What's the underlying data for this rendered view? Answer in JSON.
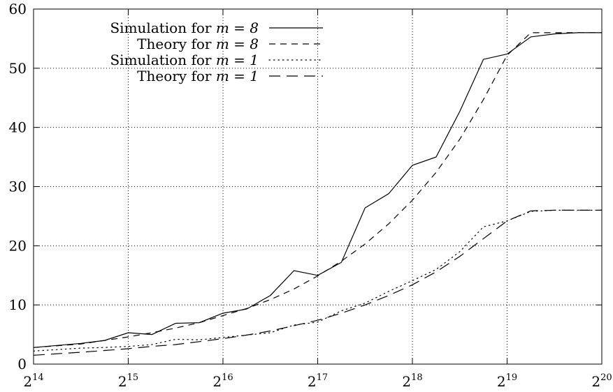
{
  "chart_data": {
    "type": "line",
    "title": "",
    "xlabel": "",
    "ylabel": "",
    "x_scale": "log2",
    "x_exponent_range": [
      14,
      20
    ],
    "ylim": [
      0,
      60
    ],
    "grid": true,
    "legend_position": "top-left",
    "x_ticks": [
      {
        "base": "2",
        "exp": "14"
      },
      {
        "base": "2",
        "exp": "15"
      },
      {
        "base": "2",
        "exp": "16"
      },
      {
        "base": "2",
        "exp": "17"
      },
      {
        "base": "2",
        "exp": "18"
      },
      {
        "base": "2",
        "exp": "19"
      },
      {
        "base": "2",
        "exp": "20"
      }
    ],
    "y_ticks": [
      "0",
      "10",
      "20",
      "30",
      "40",
      "50",
      "60"
    ],
    "series": [
      {
        "label_text": "Simulation for ",
        "label_math": "m = 8",
        "style": "solid",
        "points": [
          [
            14,
            2.8
          ],
          [
            14.5,
            3.5
          ],
          [
            14.75,
            4.0
          ],
          [
            15,
            5.3
          ],
          [
            15.25,
            5.0
          ],
          [
            15.5,
            6.9
          ],
          [
            15.75,
            7.0
          ],
          [
            16,
            8.6
          ],
          [
            16.25,
            9.3
          ],
          [
            16.5,
            11.6
          ],
          [
            16.75,
            15.8
          ],
          [
            17,
            15.0
          ],
          [
            17.25,
            17.2
          ],
          [
            17.5,
            26.4
          ],
          [
            17.75,
            28.8
          ],
          [
            18,
            33.6
          ],
          [
            18.25,
            35.0
          ],
          [
            18.5,
            42.7
          ],
          [
            18.75,
            51.5
          ],
          [
            19,
            52.4
          ],
          [
            19.25,
            55.3
          ],
          [
            19.5,
            55.8
          ],
          [
            19.75,
            56.0
          ],
          [
            20,
            56.0
          ]
        ]
      },
      {
        "label_text": "Theory for ",
        "label_math": "m = 8",
        "style": "dashed",
        "points": [
          [
            14,
            2.8
          ],
          [
            14.5,
            3.4
          ],
          [
            14.75,
            4.0
          ],
          [
            15,
            4.6
          ],
          [
            15.25,
            5.3
          ],
          [
            15.5,
            6.1
          ],
          [
            15.75,
            7.0
          ],
          [
            16,
            8.2
          ],
          [
            16.25,
            9.4
          ],
          [
            16.5,
            10.9
          ],
          [
            16.75,
            12.7
          ],
          [
            17,
            14.9
          ],
          [
            17.25,
            17.4
          ],
          [
            17.5,
            20.3
          ],
          [
            17.75,
            23.7
          ],
          [
            18,
            27.7
          ],
          [
            18.25,
            32.4
          ],
          [
            18.5,
            38.0
          ],
          [
            18.75,
            44.7
          ],
          [
            19,
            52.2
          ],
          [
            19.25,
            56.0
          ],
          [
            19.5,
            56.0
          ],
          [
            19.75,
            56.0
          ],
          [
            20,
            56.0
          ]
        ]
      },
      {
        "label_text": "Simulation for ",
        "label_math": "m = 1",
        "style": "dotted",
        "points": [
          [
            14,
            2.2
          ],
          [
            14.5,
            2.7
          ],
          [
            14.75,
            2.8
          ],
          [
            15,
            3.0
          ],
          [
            15.25,
            3.3
          ],
          [
            15.5,
            4.2
          ],
          [
            15.75,
            4.1
          ],
          [
            16,
            4.5
          ],
          [
            16.25,
            4.9
          ],
          [
            16.5,
            5.3
          ],
          [
            16.75,
            6.6
          ],
          [
            17,
            7.1
          ],
          [
            17.25,
            9.0
          ],
          [
            17.5,
            10.3
          ],
          [
            17.75,
            12.3
          ],
          [
            18,
            14.1
          ],
          [
            18.25,
            16.0
          ],
          [
            18.5,
            19.0
          ],
          [
            18.75,
            23.2
          ],
          [
            19,
            24.2
          ],
          [
            19.25,
            25.8
          ],
          [
            19.5,
            26.0
          ],
          [
            19.75,
            26.0
          ],
          [
            20,
            26.0
          ]
        ]
      },
      {
        "label_text": "Theory for ",
        "label_math": "m = 1",
        "style": "longdash",
        "points": [
          [
            14,
            1.5
          ],
          [
            14.5,
            2.0
          ],
          [
            14.75,
            2.3
          ],
          [
            15,
            2.6
          ],
          [
            15.25,
            3.0
          ],
          [
            15.5,
            3.3
          ],
          [
            15.75,
            3.8
          ],
          [
            16,
            4.3
          ],
          [
            16.25,
            4.9
          ],
          [
            16.5,
            5.6
          ],
          [
            16.75,
            6.5
          ],
          [
            17,
            7.4
          ],
          [
            17.25,
            8.6
          ],
          [
            17.5,
            10.0
          ],
          [
            17.75,
            11.6
          ],
          [
            18,
            13.4
          ],
          [
            18.25,
            15.6
          ],
          [
            18.5,
            18.2
          ],
          [
            18.75,
            21.2
          ],
          [
            19,
            24.2
          ],
          [
            19.25,
            25.9
          ],
          [
            19.5,
            26.0
          ],
          [
            19.75,
            26.0
          ],
          [
            20,
            26.0
          ]
        ]
      }
    ]
  }
}
